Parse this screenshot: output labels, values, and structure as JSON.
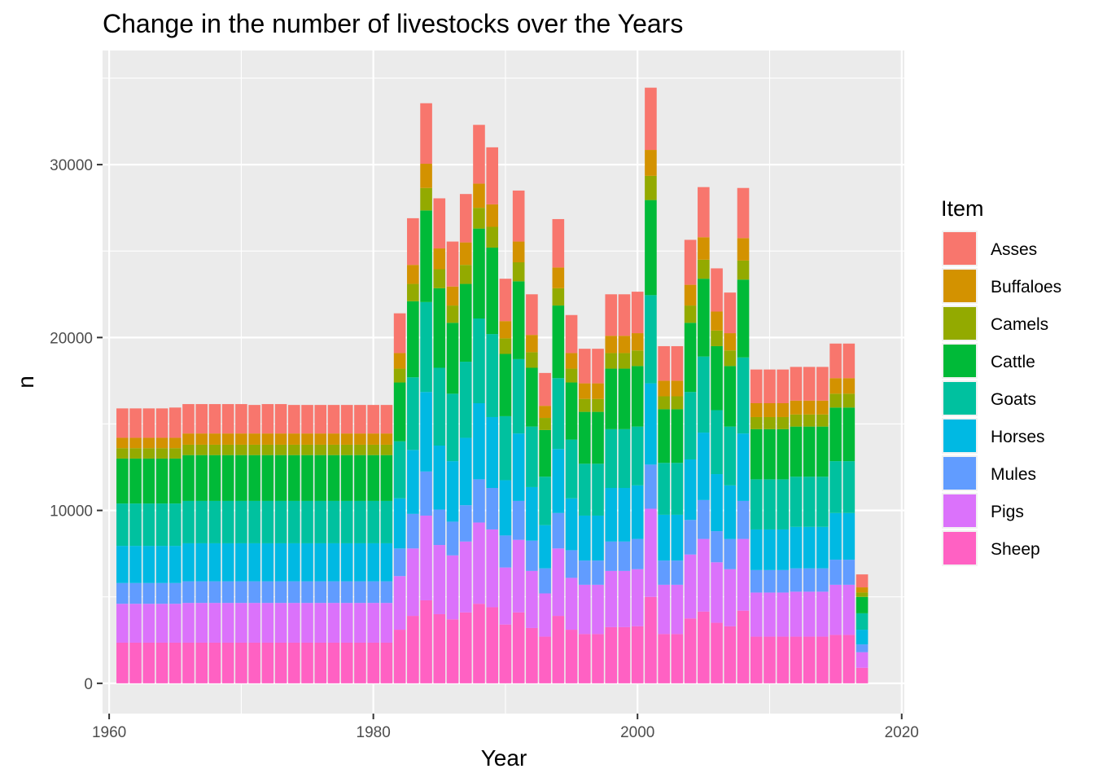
{
  "chart_data": {
    "type": "bar",
    "stacked": true,
    "title": "Change in the number of livestocks over the Years",
    "xlabel": "Year",
    "ylabel": "n",
    "xlim": [
      1959.5,
      2020.2
    ],
    "ylim": [
      -1750,
      36600
    ],
    "x_ticks": [
      1960,
      1980,
      2000,
      2020
    ],
    "y_ticks": [
      0,
      10000,
      20000,
      30000
    ],
    "grid": true,
    "legend": {
      "title": "Item",
      "position": "right"
    },
    "series_order": [
      "Asses",
      "Buffaloes",
      "Camels",
      "Cattle",
      "Goats",
      "Horses",
      "Mules",
      "Pigs",
      "Sheep"
    ],
    "colors": {
      "Asses": "#F8766D",
      "Buffaloes": "#D39200",
      "Camels": "#93AA00",
      "Cattle": "#00BA38",
      "Goats": "#00C19F",
      "Horses": "#00B9E3",
      "Mules": "#619CFF",
      "Pigs": "#DB72FB",
      "Sheep": "#FF61C3"
    },
    "years": [
      1961,
      1962,
      1963,
      1964,
      1965,
      1966,
      1967,
      1968,
      1969,
      1970,
      1971,
      1972,
      1973,
      1974,
      1975,
      1976,
      1977,
      1978,
      1979,
      1980,
      1981,
      1982,
      1983,
      1984,
      1985,
      1986,
      1987,
      1988,
      1989,
      1990,
      1991,
      1992,
      1993,
      1994,
      1995,
      1996,
      1997,
      1998,
      1999,
      2000,
      2001,
      2002,
      2003,
      2004,
      2005,
      2006,
      2007,
      2008,
      2009,
      2010,
      2011,
      2012,
      2013,
      2014,
      2015,
      2016,
      2017
    ],
    "series": [
      {
        "name": "Sheep",
        "values": [
          2350,
          2350,
          2350,
          2350,
          2350,
          2350,
          2350,
          2350,
          2350,
          2350,
          2350,
          2350,
          2350,
          2350,
          2350,
          2350,
          2350,
          2350,
          2350,
          2350,
          2350,
          3100,
          3900,
          4800,
          4000,
          3700,
          4100,
          4600,
          4400,
          3400,
          4100,
          3200,
          2700,
          3900,
          3100,
          2850,
          2850,
          3250,
          3250,
          3300,
          5000,
          2850,
          2850,
          3750,
          4150,
          3500,
          3300,
          4200,
          2700,
          2700,
          2700,
          2700,
          2700,
          2700,
          2800,
          2800,
          900
        ]
      },
      {
        "name": "Pigs",
        "values": [
          2250,
          2250,
          2250,
          2250,
          2250,
          2300,
          2300,
          2300,
          2300,
          2300,
          2300,
          2300,
          2300,
          2300,
          2300,
          2300,
          2300,
          2300,
          2300,
          2300,
          2300,
          3100,
          3900,
          4900,
          4000,
          3700,
          4100,
          4700,
          4500,
          3300,
          4200,
          3300,
          2500,
          3900,
          3000,
          2850,
          2850,
          3250,
          3250,
          3300,
          5100,
          2850,
          2850,
          3700,
          4200,
          3500,
          3300,
          4150,
          2550,
          2550,
          2550,
          2600,
          2600,
          2600,
          2900,
          2900,
          900
        ]
      },
      {
        "name": "Mules",
        "values": [
          1200,
          1200,
          1200,
          1200,
          1200,
          1250,
          1250,
          1250,
          1250,
          1250,
          1250,
          1250,
          1250,
          1250,
          1250,
          1250,
          1250,
          1250,
          1250,
          1250,
          1250,
          1600,
          2000,
          2550,
          2050,
          1950,
          2100,
          2500,
          2400,
          1850,
          2250,
          1750,
          1450,
          2050,
          1600,
          1400,
          1400,
          1700,
          1700,
          1750,
          2550,
          1400,
          1400,
          2000,
          2250,
          1800,
          1750,
          2200,
          1300,
          1300,
          1300,
          1350,
          1350,
          1350,
          1450,
          1450,
          450
        ]
      },
      {
        "name": "Horses",
        "values": [
          2150,
          2150,
          2150,
          2150,
          2150,
          2200,
          2200,
          2200,
          2200,
          2200,
          2200,
          2200,
          2200,
          2200,
          2200,
          2200,
          2200,
          2200,
          2200,
          2200,
          2200,
          2900,
          3700,
          4600,
          3700,
          3500,
          3900,
          4400,
          4100,
          3200,
          3900,
          3100,
          2500,
          3700,
          3000,
          2600,
          2600,
          3100,
          3100,
          3100,
          4700,
          2650,
          2650,
          3500,
          3900,
          3300,
          3100,
          3900,
          2350,
          2350,
          2350,
          2400,
          2400,
          2400,
          2700,
          2700,
          850
        ]
      },
      {
        "name": "Goats",
        "values": [
          2450,
          2450,
          2450,
          2450,
          2450,
          2450,
          2450,
          2450,
          2450,
          2450,
          2450,
          2450,
          2450,
          2450,
          2450,
          2450,
          2450,
          2450,
          2450,
          2450,
          2450,
          3300,
          4200,
          5200,
          4500,
          3900,
          4400,
          4900,
          4800,
          3700,
          4300,
          3500,
          2800,
          4100,
          3400,
          3000,
          3000,
          3400,
          3400,
          3400,
          5100,
          3000,
          3000,
          3900,
          4400,
          3700,
          3400,
          4400,
          2900,
          2900,
          2900,
          2900,
          2900,
          2900,
          3000,
          3000,
          950
        ]
      },
      {
        "name": "Cattle",
        "values": [
          2600,
          2600,
          2600,
          2600,
          2600,
          2650,
          2650,
          2650,
          2650,
          2650,
          2650,
          2650,
          2650,
          2650,
          2650,
          2650,
          2650,
          2650,
          2650,
          2650,
          2650,
          3400,
          4400,
          5300,
          4600,
          4100,
          4500,
          5200,
          5000,
          3600,
          4500,
          3400,
          2700,
          4200,
          3300,
          3000,
          3000,
          3500,
          3500,
          3500,
          5500,
          3100,
          3100,
          4000,
          4500,
          3700,
          3500,
          4500,
          2900,
          2900,
          2900,
          2900,
          2900,
          2900,
          3100,
          3100,
          950
        ]
      },
      {
        "name": "Camels",
        "values": [
          600,
          600,
          600,
          600,
          600,
          600,
          600,
          600,
          600,
          600,
          600,
          600,
          600,
          600,
          600,
          600,
          600,
          600,
          600,
          600,
          600,
          800,
          1000,
          1300,
          1100,
          1000,
          1100,
          1200,
          1200,
          900,
          1100,
          900,
          700,
          1000,
          800,
          750,
          750,
          900,
          900,
          900,
          1400,
          750,
          750,
          1000,
          1100,
          900,
          900,
          1100,
          700,
          700,
          700,
          700,
          700,
          700,
          800,
          800,
          250
        ]
      },
      {
        "name": "Buffaloes",
        "values": [
          600,
          600,
          600,
          600,
          600,
          650,
          650,
          650,
          650,
          650,
          650,
          650,
          650,
          650,
          650,
          650,
          650,
          650,
          650,
          650,
          650,
          900,
          1100,
          1400,
          1200,
          1100,
          1300,
          1400,
          1300,
          1000,
          1200,
          1000,
          700,
          1200,
          900,
          900,
          900,
          1000,
          1000,
          1000,
          1500,
          900,
          900,
          1200,
          1300,
          1100,
          1000,
          1300,
          800,
          800,
          800,
          800,
          800,
          800,
          900,
          900,
          300
        ]
      },
      {
        "name": "Asses",
        "values": [
          1700,
          1700,
          1700,
          1700,
          1750,
          1700,
          1700,
          1700,
          1700,
          1700,
          1650,
          1700,
          1700,
          1650,
          1650,
          1650,
          1650,
          1650,
          1650,
          1650,
          1650,
          2300,
          2700,
          3500,
          2900,
          2600,
          2800,
          3400,
          3300,
          2450,
          2950,
          2350,
          1900,
          2800,
          2200,
          2000,
          2000,
          2400,
          2400,
          2400,
          3600,
          2000,
          2000,
          2600,
          2900,
          2500,
          2350,
          2900,
          1950,
          1950,
          1950,
          1950,
          1950,
          1950,
          2000,
          2000,
          750
        ]
      }
    ]
  }
}
